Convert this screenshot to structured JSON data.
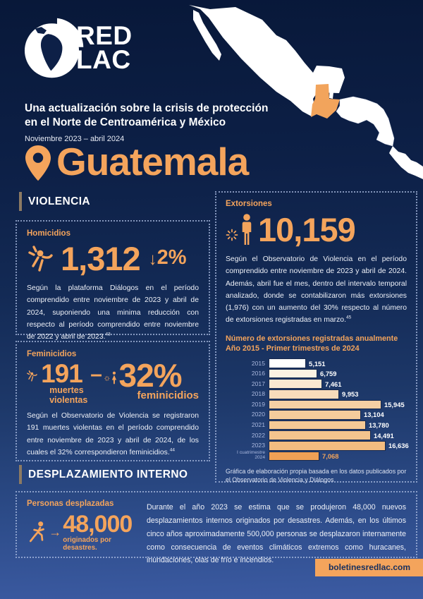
{
  "logo": {
    "line1": "RED",
    "line2": "LAC"
  },
  "header": {
    "title_line1": "Una actualización sobre la crisis de protección",
    "title_line2": "en el Norte de Centroamérica y México",
    "subtitle": "Noviembre 2023 – abril 2024"
  },
  "country": {
    "name": "Guatemala"
  },
  "violence": {
    "section_title": "VIOLENCIA",
    "homicides": {
      "label": "Homicidios",
      "value": "1,312",
      "delta_arrow": "↓",
      "delta_value": "2%",
      "text": "Según la plataforma Diálogos en el período comprendido entre noviembre de 2023 y abril de 2024, suponiendo una minima reducción con respecto al período comprendido entre noviembre de 2022 y abril de 2023.",
      "footnote": "43"
    },
    "femicides": {
      "label": "Feminicidios",
      "value": "191",
      "value_caption_line1": "muertes",
      "value_caption_line2": "violentas",
      "dash": "–",
      "pct": "32%",
      "pct_caption": "feminicidios",
      "text": "Según el Observatorio de Violencia se registraron 191 muertes violentas en el período comprendido entre noviembre de 2023 y abril de 2024, de los cuales el 32% correspondieron feminicidios.",
      "footnote": "44"
    }
  },
  "extortions": {
    "label": "Extorsiones",
    "value": "10,159",
    "text": "Según el Observatorio de Violencia en el período comprendido entre noviembre de 2023 y abril de 2024. Además, abril fue el mes, dentro del intervalo temporal analizado, donde se contabilizaron más extorsiones (1,976) con un aumento del 30% respecto al número de extorsiones registradas en marzo.",
    "footnote": "45",
    "chart_title_line1": "Número de extorsiones registradas anualmente",
    "chart_title_line2": "Año 2015 - Primer trimestres de 2024",
    "caption": "Gráfica de elaboración propia basada en los datos publicados por el Observatorio de Violencia y Diálogos"
  },
  "chart_data": {
    "type": "bar",
    "orientation": "horizontal",
    "title": "Número de extorsiones registradas anualmente — Año 2015 - Primer trimestres de 2024",
    "categories": [
      "2015",
      "2016",
      "2017",
      "2018",
      "2019",
      "2020",
      "2021",
      "2022",
      "2023",
      "I cuatrimestre 2024"
    ],
    "values": [
      5151,
      6759,
      7461,
      9953,
      15945,
      13104,
      13780,
      14491,
      16636,
      7068
    ],
    "value_labels": [
      "5,151",
      "6,759",
      "7,461",
      "9,953",
      "15,945",
      "13,104",
      "13,780",
      "14,491",
      "16,636",
      "7,068"
    ],
    "xlim": [
      0,
      17000
    ],
    "grid": false,
    "legend": "none",
    "bar_colors": [
      "#ffffff",
      "#fcf2e2",
      "#fae8d1",
      "#f8dcbb",
      "#f6d0a4",
      "#f5cc9c",
      "#f5c996",
      "#f4c48e",
      "#f3bc80",
      "#f0a055"
    ],
    "value_label_colors": [
      "#ffffff",
      "#ffffff",
      "#ffffff",
      "#ffffff",
      "#ffffff",
      "#ffffff",
      "#ffffff",
      "#ffffff",
      "#ffffff",
      "#f2a45c"
    ]
  },
  "displacement": {
    "section_title": "DESPLAZAMIENTO INTERNO",
    "label": "Personas desplazadas",
    "arrow": "→",
    "value": "48,000",
    "value_caption": "originados por desastres.",
    "text": "Durante el año 2023 se estima que se produjeron 48,000 nuevos desplazamientos internos originados por desastres. Además, en los últimos cinco años aproximadamente 500,000 personas se desplazaron internamente como consecuencia de eventos climáticos extremos como huracanes, inundaciones, olas de frío e incendios."
  },
  "footer": {
    "link": "boletinesredlac.com"
  },
  "colors": {
    "accent_orange": "#F4A45C",
    "background_navy": "#0d2047",
    "dotted_border": "#aabbdf"
  }
}
